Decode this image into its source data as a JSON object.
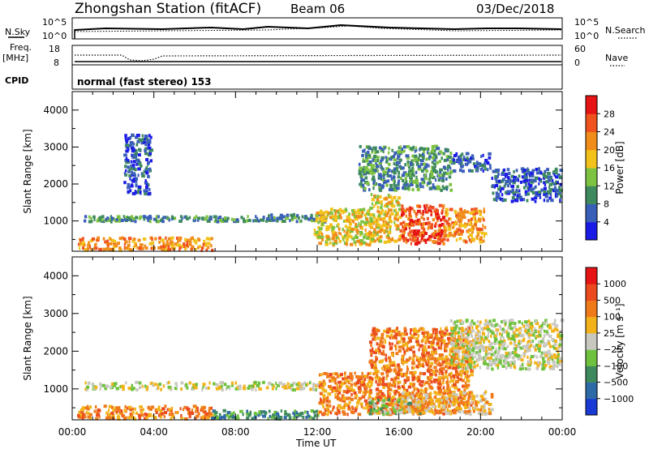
{
  "header": {
    "station": "Zhongshan Station (fitACF)",
    "beam": "Beam 06",
    "date": "03/Dec/2018"
  },
  "strip_labels": {
    "nsky": "N.Sky",
    "nsky_hi": "10^5",
    "nsky_lo": "10^0",
    "nsearch": "N.Search",
    "nsearch_hi": "10^5",
    "nsearch_lo": "10^0",
    "freq_top": "Freq.",
    "freq_unit": "[MHz]",
    "freq_hi": "18",
    "freq_lo": "8",
    "nave": "Nave",
    "nave_hi": "60",
    "nave_lo": "0",
    "cpid": "CPID",
    "mode": "normal (fast stereo) 153"
  },
  "chart_data": [
    {
      "type": "heatmap",
      "name": "power",
      "ylabel": "Slant Range [km]",
      "yticks": [
        "1000",
        "2000",
        "3000",
        "4000"
      ],
      "ylim": [
        180,
        4500
      ],
      "colorbar": {
        "label": "Power [dB]",
        "ticks": [
          "4",
          "8",
          "12",
          "16",
          "20",
          "24",
          "28"
        ],
        "colors": [
          "#1a1ae6",
          "#3a5fb8",
          "#3e8a5e",
          "#7ec242",
          "#f2c21a",
          "#f08c1a",
          "#f0521e",
          "#e61414"
        ]
      },
      "regions": [
        {
          "t0": 0.2,
          "t1": 6.8,
          "r0": 180,
          "r1": 520,
          "level": 5
        },
        {
          "t0": 0.5,
          "t1": 9.5,
          "r0": 950,
          "r1": 1100,
          "level": 2
        },
        {
          "t0": 9.5,
          "t1": 12.5,
          "r0": 950,
          "r1": 1150,
          "level": 2
        },
        {
          "t0": 11.8,
          "t1": 14.6,
          "r0": 300,
          "r1": 1300,
          "level": 4
        },
        {
          "t0": 14.5,
          "t1": 16.0,
          "r0": 400,
          "r1": 1700,
          "level": 4
        },
        {
          "t0": 16.0,
          "t1": 18.2,
          "r0": 350,
          "r1": 1400,
          "level": 6
        },
        {
          "t0": 18.2,
          "t1": 20.2,
          "r0": 400,
          "r1": 1300,
          "level": 5
        },
        {
          "t0": 18.5,
          "t1": 20.5,
          "r0": 2300,
          "r1": 2800,
          "level": 1
        },
        {
          "t0": 20.5,
          "t1": 23.9,
          "r0": 1500,
          "r1": 2400,
          "level": 1
        },
        {
          "t0": 14.0,
          "t1": 18.5,
          "r0": 1800,
          "r1": 3000,
          "level": 2
        },
        {
          "t0": 2.5,
          "t1": 3.8,
          "r0": 1700,
          "r1": 3300,
          "level": 1
        }
      ]
    },
    {
      "type": "heatmap",
      "name": "velocity",
      "ylabel": "Slant Range [km]",
      "yticks": [
        "1000",
        "2000",
        "3000",
        "4000"
      ],
      "ylim": [
        180,
        4500
      ],
      "colorbar": {
        "label": "Velocity  [m s⁻¹]",
        "ticks": [
          "1000",
          "500",
          "100",
          "25",
          "−25",
          "−100",
          "−500",
          "−1000"
        ],
        "colors": [
          "#1a3ad6",
          "#2f6aa8",
          "#3e8a5e",
          "#6fc23e",
          "#c8c8c0",
          "#f2b21a",
          "#f07a1a",
          "#ea4a1e",
          "#e61414"
        ]
      },
      "regions": [
        {
          "t0": 0.2,
          "t1": 6.8,
          "r0": 180,
          "r1": 520,
          "level": 6
        },
        {
          "t0": 0.5,
          "t1": 12.0,
          "r0": 950,
          "r1": 1150,
          "level": 4
        },
        {
          "t0": 6.8,
          "t1": 12.0,
          "r0": 180,
          "r1": 400,
          "level": 2
        },
        {
          "t0": 12.0,
          "t1": 14.6,
          "r0": 300,
          "r1": 1400,
          "level": 6
        },
        {
          "t0": 14.5,
          "t1": 19.5,
          "r0": 300,
          "r1": 2600,
          "level": 6
        },
        {
          "t0": 14.5,
          "t1": 17.0,
          "r0": 300,
          "r1": 700,
          "level": 3
        },
        {
          "t0": 18.5,
          "t1": 23.9,
          "r0": 1500,
          "r1": 2800,
          "level": 4
        },
        {
          "t0": 16.0,
          "t1": 20.5,
          "r0": 300,
          "r1": 900,
          "level": 5
        }
      ]
    }
  ],
  "xaxis": {
    "label": "Time UT",
    "ticks": [
      "00:00",
      "04:00",
      "08:00",
      "12:00",
      "16:00",
      "20:00",
      "00:00"
    ]
  }
}
